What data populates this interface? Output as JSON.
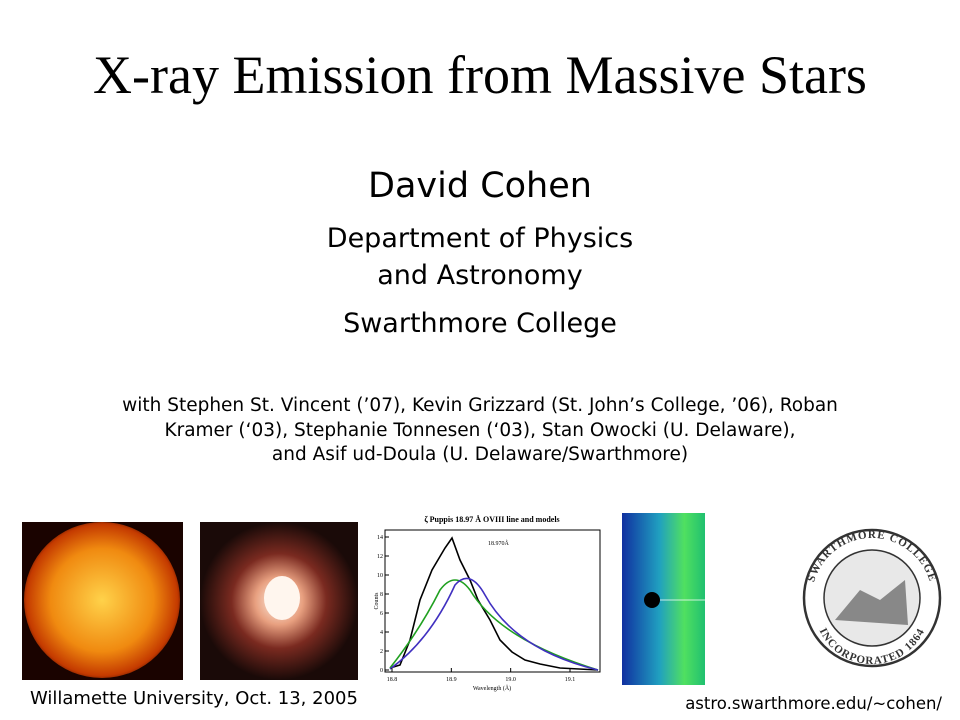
{
  "slide": {
    "title": "X-ray Emission from Massive Stars",
    "author": "David Cohen",
    "affiliation_lines": [
      "Department of Physics",
      "and Astronomy"
    ],
    "institution": "Swarthmore College",
    "collaborators": [
      "with Stephen St. Vincent (’07), Kevin Grizzard (St. John’s College, ’06), Roban",
      "Kramer (‘03), Stephanie Tonnesen (‘03), Stan Owocki (U. Delaware),",
      "and Asif ud-Doula (U. Delaware/Swarthmore)"
    ],
    "plot": {
      "title": "ζ Puppis 18.97 Å OVIII line and models",
      "annotation": "18.970Å",
      "y_label": "Counts",
      "x_label": "Wavelength (Å)",
      "x_ticks": [
        "18.8",
        "18.9",
        "19.0",
        "19.1"
      ],
      "y_ticks": [
        "0",
        "2",
        "4",
        "6",
        "8",
        "10",
        "12",
        "14"
      ]
    },
    "seal_text": [
      "SWARTHMORE COLLEGE",
      "INCORPORATED 1864"
    ],
    "footer_left": "Willamette University, Oct. 13, 2005",
    "footer_right": "astro.swarthmore.edu/~cohen/"
  }
}
